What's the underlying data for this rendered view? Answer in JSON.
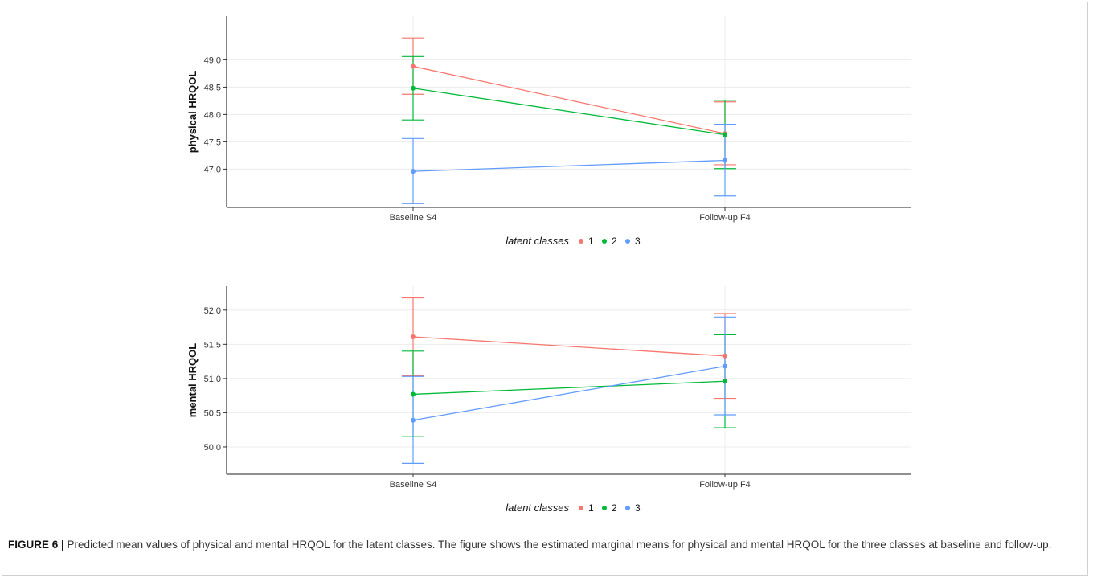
{
  "caption": {
    "label": "FIGURE 6 |",
    "text": " Predicted mean values of physical and mental HRQOL for the latent classes. The figure shows the estimated marginal means for physical and mental HRQOL for the three classes at baseline and follow-up."
  },
  "colors": {
    "class_1": "#F8766D",
    "class_2": "#00BA38",
    "class_3": "#619CFF"
  },
  "chart_data": [
    {
      "type": "line",
      "title": "",
      "xlabel": "",
      "ylabel": "physical HRQOL",
      "categories": [
        "Baseline S4",
        "Follow-up F4"
      ],
      "yticks": [
        "47.0",
        "47.5",
        "48.0",
        "48.5",
        "49.0"
      ],
      "ylim": [
        46.3,
        49.8
      ],
      "grid": true,
      "legend": {
        "title": "latent classes",
        "position": "bottom",
        "labels": [
          "1",
          "2",
          "3"
        ]
      },
      "series": [
        {
          "name": "1",
          "values": [
            48.88,
            47.65
          ],
          "lower": [
            48.37,
            47.08
          ],
          "upper": [
            49.4,
            48.23
          ]
        },
        {
          "name": "2",
          "values": [
            48.48,
            47.63
          ],
          "lower": [
            47.9,
            47.01
          ],
          "upper": [
            49.06,
            48.26
          ]
        },
        {
          "name": "3",
          "values": [
            46.96,
            47.16
          ],
          "lower": [
            46.37,
            46.51
          ],
          "upper": [
            47.56,
            47.82
          ]
        }
      ]
    },
    {
      "type": "line",
      "title": "",
      "xlabel": "",
      "ylabel": "mental HRQOL",
      "categories": [
        "Baseline S4",
        "Follow-up F4"
      ],
      "yticks": [
        "50.0",
        "50.5",
        "51.0",
        "51.5",
        "52.0"
      ],
      "ylim": [
        49.6,
        52.35
      ],
      "grid": true,
      "legend": {
        "title": "latent classes",
        "position": "bottom",
        "labels": [
          "1",
          "2",
          "3"
        ]
      },
      "series": [
        {
          "name": "1",
          "values": [
            51.61,
            51.33
          ],
          "lower": [
            51.04,
            50.71
          ],
          "upper": [
            52.18,
            51.95
          ]
        },
        {
          "name": "2",
          "values": [
            50.77,
            50.96
          ],
          "lower": [
            50.15,
            50.28
          ],
          "upper": [
            51.4,
            51.64
          ]
        },
        {
          "name": "3",
          "values": [
            50.39,
            51.18
          ],
          "lower": [
            49.76,
            50.47
          ],
          "upper": [
            51.03,
            51.9
          ]
        }
      ]
    }
  ]
}
